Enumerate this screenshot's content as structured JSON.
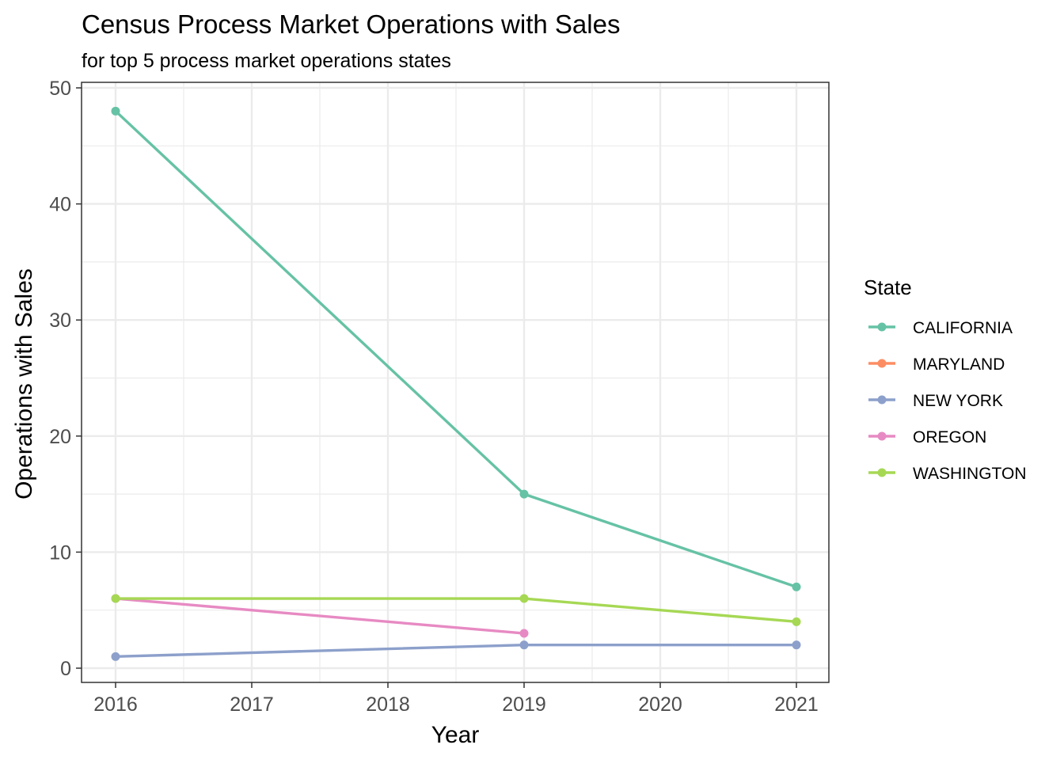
{
  "chart_data": {
    "type": "line",
    "title": "Census Process Market Operations with Sales",
    "subtitle": "for top 5 process market operations states",
    "xlabel": "Year",
    "ylabel": "Operations with Sales",
    "xlim": [
      2016,
      2021
    ],
    "ylim": [
      0,
      50
    ],
    "x_ticks": [
      2016,
      2017,
      2018,
      2019,
      2020,
      2021
    ],
    "y_ticks": [
      0,
      10,
      20,
      30,
      40,
      50
    ],
    "grid": true,
    "legend": {
      "title": "State",
      "position": "right"
    },
    "series": [
      {
        "name": "CALIFORNIA",
        "color": "#66c2a5",
        "points": [
          {
            "x": 2016,
            "y": 48
          },
          {
            "x": 2019,
            "y": 15
          },
          {
            "x": 2021,
            "y": 7
          }
        ]
      },
      {
        "name": "MARYLAND",
        "color": "#fc8d62",
        "points": []
      },
      {
        "name": "NEW YORK",
        "color": "#8da0cb",
        "points": [
          {
            "x": 2016,
            "y": 1
          },
          {
            "x": 2019,
            "y": 2
          },
          {
            "x": 2021,
            "y": 2
          }
        ]
      },
      {
        "name": "OREGON",
        "color": "#e78ac3",
        "points": [
          {
            "x": 2016,
            "y": 6
          },
          {
            "x": 2019,
            "y": 3
          }
        ]
      },
      {
        "name": "WASHINGTON",
        "color": "#a6d854",
        "points": [
          {
            "x": 2016,
            "y": 6
          },
          {
            "x": 2019,
            "y": 6
          },
          {
            "x": 2021,
            "y": 4
          }
        ]
      }
    ]
  }
}
